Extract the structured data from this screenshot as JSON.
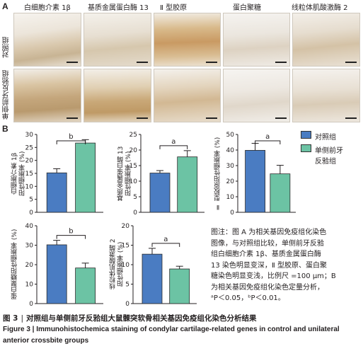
{
  "panel_a": {
    "label": "A",
    "columns": [
      "白细胞介素 1β",
      "基质金属蛋白酶 13",
      "Ⅱ 型胶原",
      "蛋白聚糖",
      "线粒体肌酸激酶 2"
    ],
    "rows": [
      "对照组",
      "单侧前牙反𬌗组"
    ]
  },
  "panel_b": {
    "label": "B",
    "legend": [
      "对照组",
      "单侧前牙",
      "反𬌗组"
    ]
  },
  "colors": {
    "control": "#4a7cc2",
    "crossbite": "#6cc3a4"
  },
  "chart_data": [
    {
      "type": "bar",
      "ylabel": "白细胞介素 1β 阳性细胞率 (%)",
      "ylim": [
        0,
        30
      ],
      "yticks": [
        0,
        5,
        10,
        15,
        20,
        25,
        30
      ],
      "series": [
        {
          "name": "对照组",
          "value": 15.2,
          "error": 1.6
        },
        {
          "name": "单侧前牙反𬌗组",
          "value": 26.7,
          "error": 1.3
        }
      ],
      "significance": "b"
    },
    {
      "type": "bar",
      "ylabel": "基质金属蛋白酶 13 阳性细胞率 (%)",
      "ylim": [
        0,
        25
      ],
      "yticks": [
        0,
        5,
        10,
        15,
        20,
        25
      ],
      "series": [
        {
          "name": "对照组",
          "value": 12.6,
          "error": 0.8
        },
        {
          "name": "单侧前牙反𬌗组",
          "value": 17.8,
          "error": 2.0
        }
      ],
      "significance": "a"
    },
    {
      "type": "bar",
      "ylabel": "Ⅱ 型胶原阳性细胞率 (%)",
      "ylim": [
        0,
        50
      ],
      "yticks": [
        0,
        10,
        20,
        30,
        40,
        50
      ],
      "series": [
        {
          "name": "对照组",
          "value": 39.8,
          "error": 4.5
        },
        {
          "name": "单侧前牙反𬌗组",
          "value": 24.7,
          "error": 5.5
        }
      ],
      "significance": "a"
    },
    {
      "type": "bar",
      "ylabel": "蛋白聚糖阳性细胞率 (%)",
      "ylim": [
        0,
        40
      ],
      "yticks": [
        0,
        10,
        20,
        30,
        40
      ],
      "series": [
        {
          "name": "对照组",
          "value": 30.2,
          "error": 2.3
        },
        {
          "name": "单侧前牙反𬌗组",
          "value": 18.3,
          "error": 2.5
        }
      ],
      "significance": "b"
    },
    {
      "type": "bar",
      "ylabel": "线粒体肌酸激酶 2 阳性细胞率 (%)",
      "ylim": [
        0,
        20
      ],
      "yticks": [
        0,
        5,
        10,
        15,
        20
      ],
      "series": [
        {
          "name": "对照组",
          "value": 12.7,
          "error": 1.5
        },
        {
          "name": "单侧前牙反𬌗组",
          "value": 8.9,
          "error": 0.7
        }
      ],
      "significance": "a"
    }
  ],
  "y_titles": [
    [
      "白细胞介素 1β",
      "阳性细胞率 (%)"
    ],
    [
      "基质金属蛋白酶 13",
      "阳性细胞率 (%)"
    ],
    [
      "Ⅱ 型胶原阳性细胞率 (%)"
    ],
    [
      "蛋白聚糖阳性细胞率 (%)"
    ],
    [
      "线粒体肌酸激酶 2",
      "阳性细胞率 (%)"
    ]
  ],
  "note_lines": [
    "图注：图 A 为相关基因免疫组化染色",
    "图像，与对照组比较，单侧前牙反𬌗",
    "组白细胞介素 1β、基质金属蛋白酶",
    "13 染色明显变深，Ⅱ 型胶原、蛋白聚",
    "糖染色明显变浅，比例尺 =100 μm；B",
    "为相关基因免疫组化染色定量分析，",
    "ᵃP＜0.05，ᵇP＜0.01。"
  ],
  "caption_cn": {
    "number": "图 3",
    "sep": "|",
    "text": "对照组与单侧前牙反𬌗组大鼠髁突软骨相关基因免疫组化染色分析结果"
  },
  "caption_en": "Figure 3 | Immunohistochemica staining of condylar cartilage-related genes in control and unilateral anterior crossbite groups"
}
